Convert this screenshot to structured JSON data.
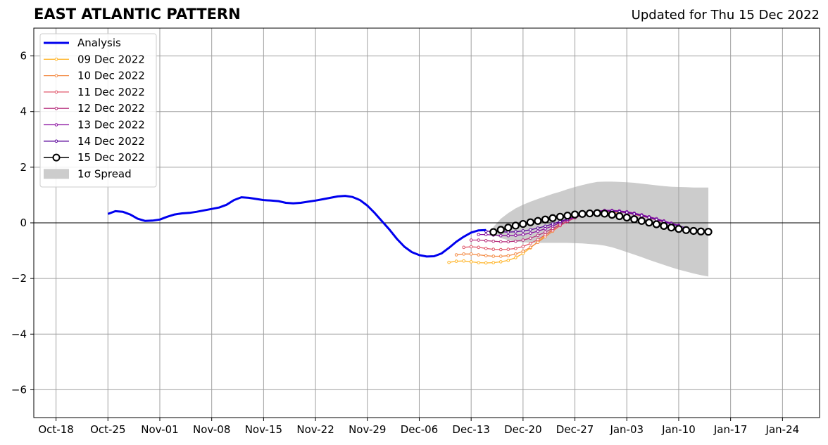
{
  "chart_data": {
    "type": "line",
    "title": "EAST ATLANTIC PATTERN",
    "subtitle": "Updated for Thu 15 Dec 2022",
    "xlabel": "",
    "ylabel": "",
    "xlim": [
      "2022-10-15",
      "2023-01-29"
    ],
    "ylim": [
      -7,
      7
    ],
    "grid": true,
    "legend_position": "upper-left",
    "x_tick_dates": [
      "2022-10-18",
      "2022-10-25",
      "2022-11-01",
      "2022-11-08",
      "2022-11-15",
      "2022-11-22",
      "2022-11-29",
      "2022-12-06",
      "2022-12-13",
      "2022-12-20",
      "2022-12-27",
      "2023-01-03",
      "2023-01-10",
      "2023-01-17",
      "2023-01-24"
    ],
    "x_tick_labels": [
      "Oct-18",
      "Oct-25",
      "Nov-01",
      "Nov-08",
      "Nov-15",
      "Nov-22",
      "Nov-29",
      "Dec-06",
      "Dec-13",
      "Dec-20",
      "Dec-27",
      "Jan-03",
      "Jan-10",
      "Jan-17",
      "Jan-24"
    ],
    "y_ticks": [
      -6,
      -4,
      -2,
      0,
      2,
      4,
      6
    ],
    "y_tick_labels": [
      "−6",
      "−4",
      "−2",
      "0",
      "2",
      "4",
      "6"
    ],
    "analysis": {
      "name": "Analysis",
      "color": "#0000ee",
      "start": "2022-10-25",
      "values": [
        0.32,
        0.42,
        0.4,
        0.3,
        0.15,
        0.07,
        0.08,
        0.12,
        0.22,
        0.3,
        0.34,
        0.36,
        0.4,
        0.45,
        0.5,
        0.55,
        0.65,
        0.82,
        0.92,
        0.9,
        0.86,
        0.82,
        0.8,
        0.78,
        0.72,
        0.7,
        0.72,
        0.76,
        0.8,
        0.85,
        0.9,
        0.95,
        0.97,
        0.93,
        0.82,
        0.62,
        0.35,
        0.05,
        -0.25,
        -0.58,
        -0.86,
        -1.05,
        -1.16,
        -1.21,
        -1.2,
        -1.1,
        -0.9,
        -0.68,
        -0.5,
        -0.35,
        -0.27,
        -0.26
      ]
    },
    "forecasts": [
      {
        "name": "09 Dec 2022",
        "color": "#ffb52a",
        "start": "2022-12-10",
        "values": [
          -1.42,
          -1.38,
          -1.37,
          -1.4,
          -1.43,
          -1.44,
          -1.43,
          -1.4,
          -1.35,
          -1.25,
          -1.1,
          -0.9,
          -0.68,
          -0.45,
          -0.22,
          -0.02,
          0.14,
          0.26,
          0.32,
          0.35,
          0.36,
          0.35,
          0.32
        ]
      },
      {
        "name": "10 Dec 2022",
        "color": "#f38b45",
        "start": "2022-12-11",
        "values": [
          -1.15,
          -1.12,
          -1.12,
          -1.15,
          -1.18,
          -1.2,
          -1.2,
          -1.18,
          -1.12,
          -1.02,
          -0.88,
          -0.7,
          -0.5,
          -0.3,
          -0.1,
          0.08,
          0.22,
          0.33,
          0.38,
          0.4,
          0.4,
          0.38,
          0.35
        ]
      },
      {
        "name": "11 Dec 2022",
        "color": "#e0566a",
        "start": "2022-12-12",
        "values": [
          -0.88,
          -0.86,
          -0.88,
          -0.92,
          -0.95,
          -0.96,
          -0.95,
          -0.92,
          -0.85,
          -0.74,
          -0.6,
          -0.43,
          -0.26,
          -0.1,
          0.05,
          0.18,
          0.3,
          0.38,
          0.42,
          0.44,
          0.43,
          0.4,
          0.35,
          0.3,
          0.24,
          0.18,
          0.1,
          0.02
        ]
      },
      {
        "name": "12 Dec 2022",
        "color": "#b8327f",
        "start": "2022-12-13",
        "values": [
          -0.62,
          -0.62,
          -0.64,
          -0.66,
          -0.68,
          -0.68,
          -0.66,
          -0.62,
          -0.55,
          -0.45,
          -0.33,
          -0.2,
          -0.07,
          0.06,
          0.18,
          0.28,
          0.36,
          0.41,
          0.43,
          0.43,
          0.41,
          0.37,
          0.32,
          0.26,
          0.19,
          0.12,
          0.04,
          -0.04
        ]
      },
      {
        "name": "13 Dec 2022",
        "color": "#8a0fa0",
        "start": "2022-12-14",
        "values": [
          -0.42,
          -0.42,
          -0.44,
          -0.46,
          -0.46,
          -0.45,
          -0.42,
          -0.37,
          -0.3,
          -0.21,
          -0.11,
          0.0,
          0.11,
          0.21,
          0.3,
          0.37,
          0.42,
          0.45,
          0.45,
          0.43,
          0.4,
          0.35,
          0.29,
          0.22,
          0.15,
          0.07,
          -0.01,
          -0.09
        ]
      },
      {
        "name": "14 Dec 2022",
        "color": "#5a049a",
        "start": "2022-12-15",
        "values": [
          -0.3,
          -0.31,
          -0.32,
          -0.33,
          -0.32,
          -0.29,
          -0.25,
          -0.19,
          -0.12,
          -0.04,
          0.05,
          0.14,
          0.22,
          0.3,
          0.36,
          0.4,
          0.42,
          0.42,
          0.4,
          0.37,
          0.32,
          0.26,
          0.19,
          0.12,
          0.04,
          -0.04,
          -0.11,
          -0.18
        ]
      },
      {
        "name": "15 Dec 2022",
        "color": "#000000",
        "start": "2022-12-16",
        "values": [
          -0.33,
          -0.25,
          -0.17,
          -0.1,
          -0.04,
          0.02,
          0.07,
          0.12,
          0.17,
          0.22,
          0.26,
          0.3,
          0.32,
          0.34,
          0.35,
          0.33,
          0.29,
          0.24,
          0.19,
          0.13,
          0.07,
          0.01,
          -0.05,
          -0.11,
          -0.17,
          -0.22,
          -0.26,
          -0.29,
          -0.31,
          -0.32
        ]
      }
    ],
    "spread": {
      "name": "1σ Spread",
      "color": "#cccccc",
      "start": "2022-12-16",
      "upper": [
        -0.15,
        0.15,
        0.35,
        0.52,
        0.65,
        0.76,
        0.86,
        0.95,
        1.04,
        1.12,
        1.21,
        1.29,
        1.36,
        1.42,
        1.47,
        1.48,
        1.48,
        1.47,
        1.46,
        1.44,
        1.41,
        1.38,
        1.35,
        1.32,
        1.3,
        1.29,
        1.28,
        1.27,
        1.27,
        1.27
      ],
      "lower": [
        -0.4,
        -0.55,
        -0.62,
        -0.67,
        -0.7,
        -0.71,
        -0.72,
        -0.72,
        -0.72,
        -0.72,
        -0.72,
        -0.73,
        -0.74,
        -0.76,
        -0.78,
        -0.82,
        -0.88,
        -0.96,
        -1.05,
        -1.14,
        -1.23,
        -1.33,
        -1.42,
        -1.51,
        -1.6,
        -1.68,
        -1.75,
        -1.82,
        -1.88,
        -1.93
      ]
    },
    "zero_line": 0
  }
}
